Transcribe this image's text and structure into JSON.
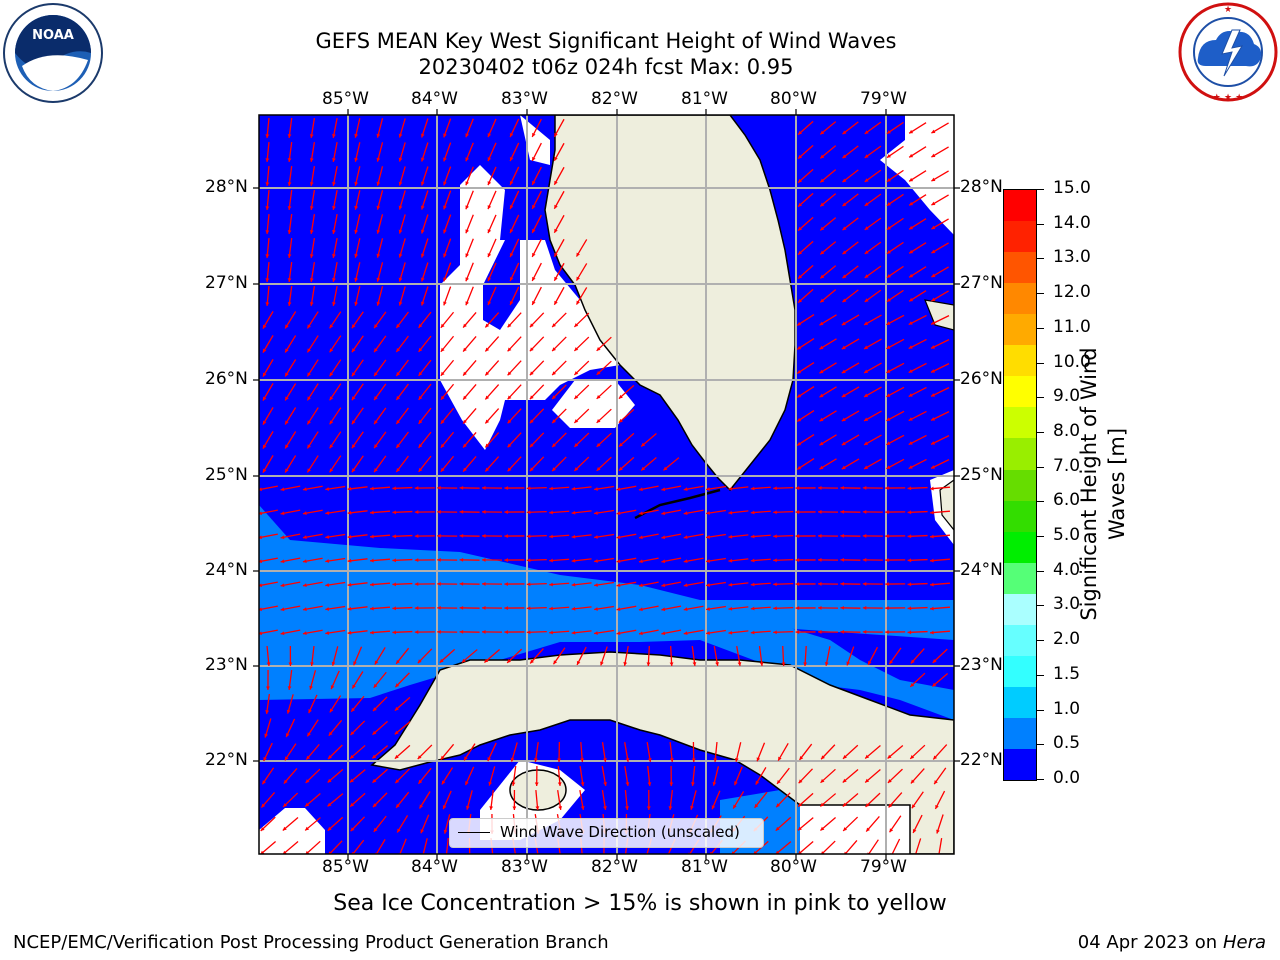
{
  "header": {
    "title_line1": "GEFS MEAN Key West Significant Height of Wind Waves",
    "title_line2": "20230402 t06z 024h fcst   Max: 0.95"
  },
  "logos": {
    "left_text": "NOAA",
    "left_ring": "NATIONAL OCEANIC AND ATMOSPHERIC ADMINISTRATION · U.S. DEPARTMENT OF COMMERCE",
    "right_ring": "NATIONAL WEATHER SERVICE"
  },
  "map": {
    "lon_labels": [
      "85°W",
      "84°W",
      "83°W",
      "82°W",
      "81°W",
      "80°W",
      "79°W"
    ],
    "lat_labels": [
      "28°N",
      "27°N",
      "26°N",
      "25°N",
      "24°N",
      "23°N",
      "22°N"
    ],
    "legend_label": "Wind Wave Direction (unscaled)",
    "colors": {
      "ocean_low": "#0000ff",
      "ocean_mid": "#0080ff",
      "land": "#eeeedd",
      "vector": "#ff0000",
      "grid": "#b0b0b0"
    }
  },
  "colorbar": {
    "label_line1": "Significant Height of Wind",
    "label_line2": "Waves [m]",
    "ticks": [
      "15.0",
      "14.0",
      "13.0",
      "12.0",
      "11.0",
      "10.0",
      "9.0",
      "8.0",
      "7.0",
      "6.0",
      "5.0",
      "4.0",
      "3.0",
      "2.0",
      "1.5",
      "1.0",
      "0.5",
      "0.0"
    ],
    "colors": [
      "#0000ff",
      "#0080ff",
      "#00ccff",
      "#33ffff",
      "#66ffff",
      "#aaffff",
      "#55ff77",
      "#00ee00",
      "#33dd00",
      "#66dd00",
      "#99ee00",
      "#ccff00",
      "#ffff00",
      "#ffdd00",
      "#ffaa00",
      "#ff8800",
      "#ff5500",
      "#ff2200",
      "#ff0000"
    ]
  },
  "bottom": {
    "note": "Sea Ice Concentration > 15% is shown in pink to yellow",
    "credit": "NCEP/EMC/Verification Post Processing Product Generation Branch",
    "date": "04 Apr 2023 on",
    "host": "Hera"
  }
}
